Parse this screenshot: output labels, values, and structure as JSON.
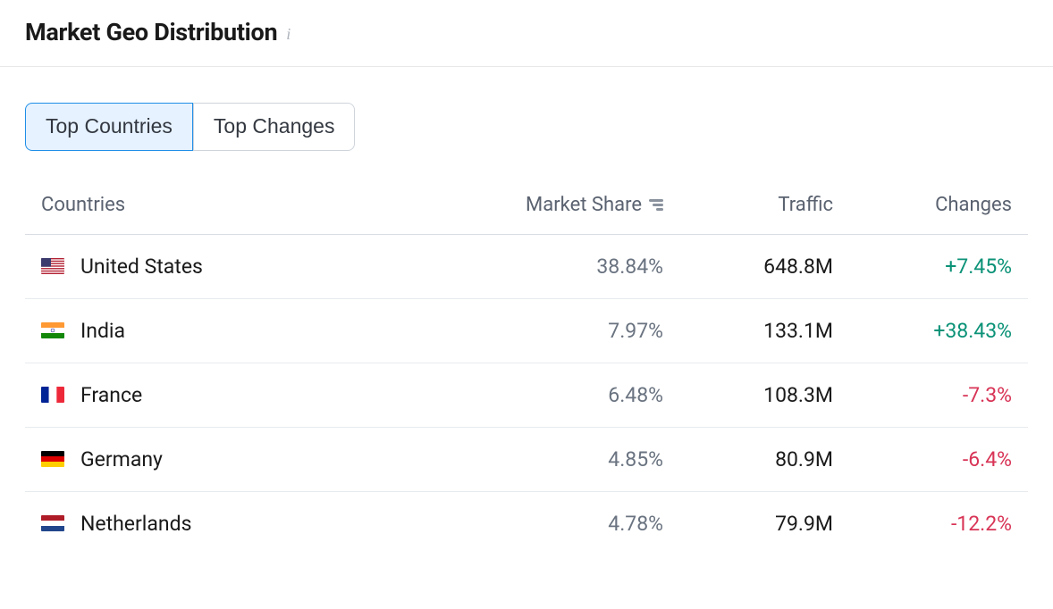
{
  "header": {
    "title": "Market Geo Distribution"
  },
  "tabs": [
    {
      "label": "Top Countries",
      "active": true
    },
    {
      "label": "Top Changes",
      "active": false
    }
  ],
  "table": {
    "columns": {
      "countries": "Countries",
      "market_share": "Market Share",
      "traffic": "Traffic",
      "changes": "Changes"
    },
    "rows": [
      {
        "country": "United States",
        "flag": "us",
        "market_share": "38.84%",
        "traffic": "648.8M",
        "change": "+7.45%",
        "change_direction": "positive"
      },
      {
        "country": "India",
        "flag": "in",
        "market_share": "7.97%",
        "traffic": "133.1M",
        "change": "+38.43%",
        "change_direction": "positive"
      },
      {
        "country": "France",
        "flag": "fr",
        "market_share": "6.48%",
        "traffic": "108.3M",
        "change": "-7.3%",
        "change_direction": "negative"
      },
      {
        "country": "Germany",
        "flag": "de",
        "market_share": "4.85%",
        "traffic": "80.9M",
        "change": "-6.4%",
        "change_direction": "negative"
      },
      {
        "country": "Netherlands",
        "flag": "nl",
        "market_share": "4.78%",
        "traffic": "79.9M",
        "change": "-12.2%",
        "change_direction": "negative"
      }
    ]
  },
  "flags": {
    "us": "<svg viewBox='0 0 26 18' xmlns='http://www.w3.org/2000/svg'><rect width='26' height='18' fill='#b22234'/><rect y='1.38' width='26' height='1.38' fill='#fff'/><rect y='4.15' width='26' height='1.38' fill='#fff'/><rect y='6.92' width='26' height='1.38' fill='#fff'/><rect y='9.69' width='26' height='1.38' fill='#fff'/><rect y='12.46' width='26' height='1.38' fill='#fff'/><rect y='15.23' width='26' height='1.38' fill='#fff'/><rect width='11' height='9.69' fill='#3c3b6e'/></svg>",
    "in": "<svg viewBox='0 0 26 18' xmlns='http://www.w3.org/2000/svg'><rect width='26' height='6' fill='#ff9933'/><rect y='6' width='26' height='6' fill='#fff'/><rect y='12' width='26' height='6' fill='#138808'/><circle cx='13' cy='9' r='2' fill='none' stroke='#000080' stroke-width='0.5'/></svg>",
    "fr": "<svg viewBox='0 0 26 18' xmlns='http://www.w3.org/2000/svg'><rect width='8.67' height='18' fill='#002395'/><rect x='8.67' width='8.67' height='18' fill='#fff'/><rect x='17.33' width='8.67' height='18' fill='#ed2939'/></svg>",
    "de": "<svg viewBox='0 0 26 18' xmlns='http://www.w3.org/2000/svg'><rect width='26' height='6' fill='#000'/><rect y='6' width='26' height='6' fill='#dd0000'/><rect y='12' width='26' height='6' fill='#ffce00'/></svg>",
    "nl": "<svg viewBox='0 0 26 18' xmlns='http://www.w3.org/2000/svg'><rect width='26' height='6' fill='#ae1c28'/><rect y='6' width='26' height='6' fill='#fff'/><rect y='12' width='26' height='6' fill='#21468b'/></svg>"
  },
  "colors": {
    "positive": "#0b9277",
    "negative": "#d83456",
    "text_primary": "#1a1a1a",
    "text_muted": "#6a7380",
    "border": "#e8ebee",
    "tab_active_bg": "#e6f2ff",
    "tab_active_border": "#1f8ee7"
  }
}
